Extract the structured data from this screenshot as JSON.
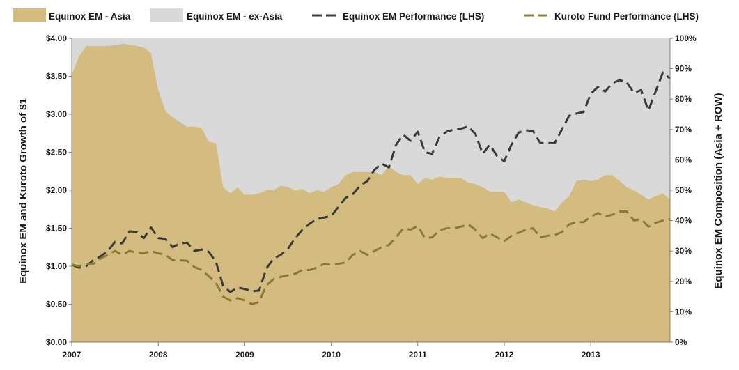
{
  "chart_data": {
    "type": "area",
    "legend_position": "top",
    "grid": false,
    "x": [
      "2007",
      "2007-02",
      "2007-03",
      "2007-04",
      "2007-05",
      "2007-06",
      "2007-07",
      "2007-08",
      "2007-09",
      "2007-10",
      "2007-11",
      "2007-12",
      "2008",
      "2008-02",
      "2008-03",
      "2008-04",
      "2008-05",
      "2008-06",
      "2008-07",
      "2008-08",
      "2008-09",
      "2008-10",
      "2008-11",
      "2008-12",
      "2009",
      "2009-02",
      "2009-03",
      "2009-04",
      "2009-05",
      "2009-06",
      "2009-07",
      "2009-08",
      "2009-09",
      "2009-10",
      "2009-11",
      "2009-12",
      "2010",
      "2010-02",
      "2010-03",
      "2010-04",
      "2010-05",
      "2010-06",
      "2010-07",
      "2010-08",
      "2010-09",
      "2010-10",
      "2010-11",
      "2010-12",
      "2011",
      "2011-02",
      "2011-03",
      "2011-04",
      "2011-05",
      "2011-06",
      "2011-07",
      "2011-08",
      "2011-09",
      "2011-10",
      "2011-11",
      "2011-12",
      "2012",
      "2012-02",
      "2012-03",
      "2012-04",
      "2012-05",
      "2012-06",
      "2012-07",
      "2012-08",
      "2012-09",
      "2012-10",
      "2012-11",
      "2012-12",
      "2013",
      "2013-02",
      "2013-03",
      "2013-04",
      "2013-05",
      "2013-06",
      "2013-07",
      "2013-08",
      "2013-09",
      "2013-10",
      "2013-11",
      "2013-12"
    ],
    "x_tick_labels": [
      "2007",
      "2008",
      "2009",
      "2010",
      "2011",
      "2012",
      "2013"
    ],
    "y_left": {
      "label": "Equinox EM and Kuroto Growth of $1",
      "range": [
        0,
        4
      ],
      "tick_values": [
        0,
        0.5,
        1,
        1.5,
        2,
        2.5,
        3,
        3.5,
        4
      ],
      "tick_labels": [
        "$0.00",
        "$0.50",
        "$1.00",
        "$1.50",
        "$2.00",
        "$2.50",
        "$3.00",
        "$3.50",
        "$4.00"
      ]
    },
    "y_right": {
      "label": "Equinox EM Composition  (Asia + ROW)",
      "range": [
        0,
        100
      ],
      "tick_values": [
        0,
        10,
        20,
        30,
        40,
        50,
        60,
        70,
        80,
        90,
        100
      ],
      "tick_labels": [
        "0%",
        "10%",
        "20%",
        "30%",
        "40%",
        "50%",
        "60%",
        "70%",
        "80%",
        "90%",
        "100%"
      ]
    },
    "series": [
      {
        "name": "Equinox EM - Asia",
        "kind": "area",
        "axis": "right",
        "color": "#d4bb80",
        "values": [
          88,
          94,
          97.5,
          97.5,
          97.5,
          97.5,
          97.7,
          98.2,
          98,
          97.5,
          97,
          95,
          83,
          76,
          74,
          72.5,
          70.8,
          71,
          70.5,
          66,
          65.5,
          51,
          49,
          51,
          48.5,
          48.5,
          49,
          50,
          50,
          51.5,
          51,
          50,
          50.5,
          49,
          50,
          49.5,
          51,
          52,
          55,
          56,
          56,
          56,
          56,
          55,
          58,
          56,
          55,
          55,
          52,
          54,
          53.5,
          54.5,
          54,
          54,
          54,
          52.5,
          52,
          51,
          49.5,
          49.5,
          49.5,
          46,
          47,
          46,
          45,
          44.5,
          44,
          43,
          46,
          48,
          53,
          53.5,
          53,
          53.5,
          55,
          55,
          53,
          51,
          50,
          48.5,
          47,
          48,
          49,
          47
        ]
      },
      {
        "name": "Equinox EM - ex-Asia",
        "kind": "area",
        "axis": "right",
        "color": "#d9d9d9"
      },
      {
        "name": "Equinox EM Performance (LHS)",
        "kind": "line",
        "dash": true,
        "axis": "left",
        "color": "#3a3a3a",
        "values": [
          1.02,
          0.98,
          1.0,
          1.08,
          1.13,
          1.2,
          1.32,
          1.3,
          1.46,
          1.45,
          1.37,
          1.51,
          1.37,
          1.36,
          1.25,
          1.3,
          1.31,
          1.2,
          1.22,
          1.19,
          1.06,
          0.74,
          0.66,
          0.72,
          0.7,
          0.67,
          0.68,
          0.97,
          1.1,
          1.15,
          1.23,
          1.37,
          1.48,
          1.56,
          1.62,
          1.64,
          1.66,
          1.78,
          1.9,
          1.95,
          2.06,
          2.12,
          2.27,
          2.35,
          2.3,
          2.6,
          2.73,
          2.65,
          2.77,
          2.5,
          2.48,
          2.7,
          2.77,
          2.8,
          2.81,
          2.84,
          2.74,
          2.48,
          2.6,
          2.45,
          2.38,
          2.6,
          2.76,
          2.79,
          2.78,
          2.62,
          2.62,
          2.62,
          2.8,
          2.98,
          3.01,
          3.03,
          3.27,
          3.36,
          3.3,
          3.41,
          3.45,
          3.42,
          3.28,
          3.32,
          3.05,
          3.3,
          3.55,
          3.47
        ]
      },
      {
        "name": "Kuroto Fund Performance (LHS)",
        "kind": "line",
        "dash": true,
        "axis": "left",
        "color": "#8a7a34",
        "values": [
          1.02,
          1.0,
          1.03,
          1.03,
          1.1,
          1.15,
          1.2,
          1.15,
          1.2,
          1.18,
          1.17,
          1.2,
          1.17,
          1.15,
          1.08,
          1.08,
          1.07,
          0.99,
          0.95,
          0.87,
          0.78,
          0.6,
          0.55,
          0.58,
          0.55,
          0.5,
          0.53,
          0.75,
          0.83,
          0.86,
          0.88,
          0.9,
          0.95,
          0.95,
          0.98,
          1.03,
          1.02,
          1.03,
          1.05,
          1.15,
          1.2,
          1.15,
          1.2,
          1.25,
          1.28,
          1.38,
          1.5,
          1.48,
          1.53,
          1.37,
          1.38,
          1.47,
          1.5,
          1.5,
          1.52,
          1.55,
          1.48,
          1.37,
          1.43,
          1.38,
          1.33,
          1.4,
          1.44,
          1.48,
          1.5,
          1.38,
          1.4,
          1.41,
          1.45,
          1.55,
          1.58,
          1.58,
          1.65,
          1.7,
          1.65,
          1.68,
          1.72,
          1.72,
          1.6,
          1.62,
          1.52,
          1.57,
          1.6,
          1.62
        ]
      }
    ]
  }
}
